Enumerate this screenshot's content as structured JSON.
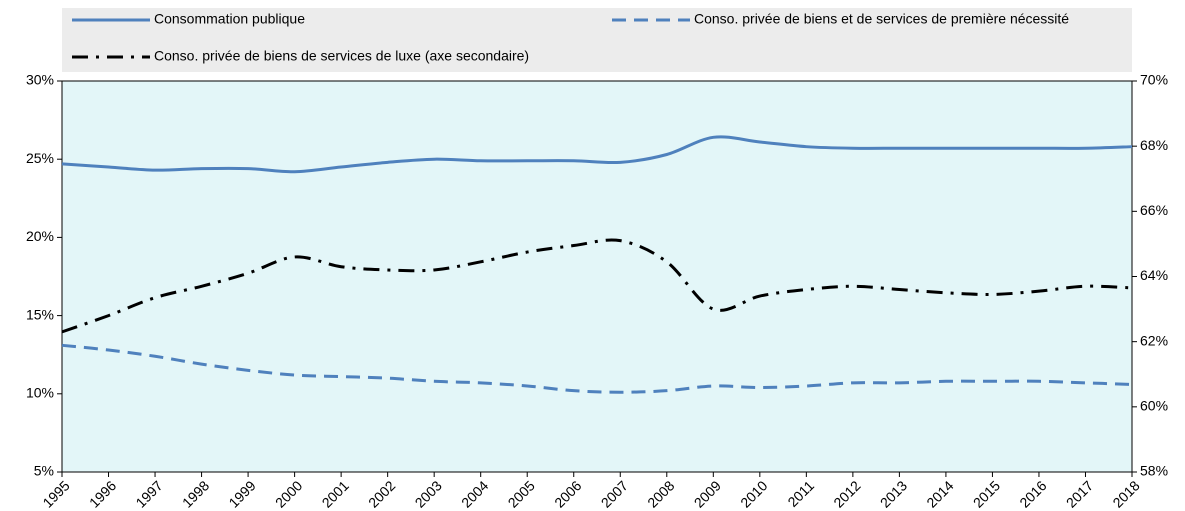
{
  "chart_data": {
    "type": "line",
    "categories": [
      "1995",
      "1996",
      "1997",
      "1998",
      "1999",
      "2000",
      "2001",
      "2002",
      "2003",
      "2004",
      "2005",
      "2006",
      "2007",
      "2008",
      "2009",
      "2010",
      "2011",
      "2012",
      "2013",
      "2014",
      "2015",
      "2016",
      "2017",
      "2018"
    ],
    "series": [
      {
        "name": "Consommation publique",
        "color": "#4f81bd",
        "dash": "solid",
        "values": [
          24.7,
          24.5,
          24.3,
          24.4,
          24.4,
          24.2,
          24.5,
          24.8,
          25.0,
          24.9,
          24.9,
          24.9,
          24.8,
          25.3,
          26.4,
          26.1,
          25.8,
          25.7,
          25.7,
          25.7,
          25.7,
          25.7,
          25.7,
          25.8
        ]
      },
      {
        "name": "Conso. privée de biens et de services de première nécessité",
        "color": "#4f81bd",
        "dash": "dashed",
        "values": [
          13.1,
          12.8,
          12.4,
          11.9,
          11.5,
          11.2,
          11.1,
          11.0,
          10.8,
          10.7,
          10.5,
          10.2,
          10.1,
          10.2,
          10.5,
          10.4,
          10.5,
          10.7,
          10.7,
          10.8,
          10.8,
          10.8,
          10.7,
          10.6
        ]
      },
      {
        "name": "Conso. privée de biens de services de luxe (axe secondaire)",
        "color": "#000000",
        "dash": "dashdot",
        "axis": "y2",
        "values": [
          62.3,
          62.8,
          63.35,
          63.7,
          64.1,
          64.6,
          64.3,
          64.2,
          64.2,
          64.45,
          64.75,
          64.95,
          65.1,
          64.45,
          63.0,
          63.4,
          63.6,
          63.7,
          63.6,
          63.5,
          63.45,
          63.55,
          63.7,
          63.65
        ]
      }
    ],
    "ylim": [
      5,
      30
    ],
    "yticks": [
      {
        "value": 5,
        "label": "5%"
      },
      {
        "value": 10,
        "label": "10%"
      },
      {
        "value": 15,
        "label": "15%"
      },
      {
        "value": 20,
        "label": "20%"
      },
      {
        "value": 25,
        "label": "25%"
      },
      {
        "value": 30,
        "label": "30%"
      }
    ],
    "y2lim": [
      58,
      70
    ],
    "y2ticks": [
      {
        "value": 58,
        "label": "58%"
      },
      {
        "value": 60,
        "label": "60%"
      },
      {
        "value": 62,
        "label": "62%"
      },
      {
        "value": 64,
        "label": "64%"
      },
      {
        "value": 66,
        "label": "66%"
      },
      {
        "value": 68,
        "label": "68%"
      },
      {
        "value": 70,
        "label": "70%"
      }
    ]
  }
}
